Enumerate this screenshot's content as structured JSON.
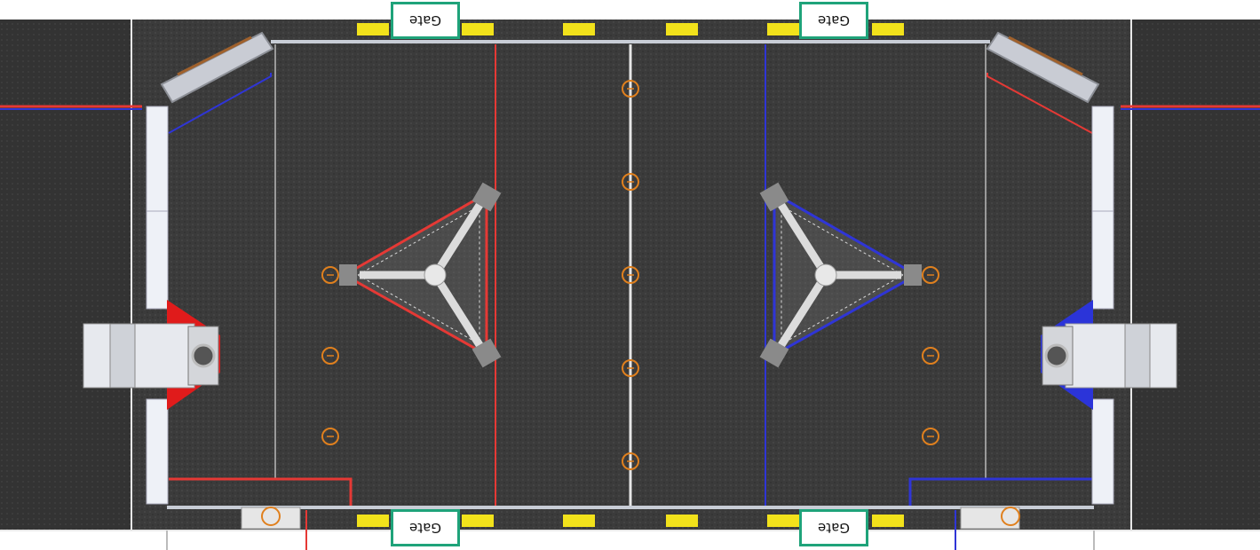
{
  "field": {
    "gates": [
      {
        "label": "Gate"
      },
      {
        "label": "Gate"
      },
      {
        "label": "Gate"
      },
      {
        "label": "Gate"
      }
    ],
    "colors": {
      "carpet": "#3b3b3b",
      "outer_carpet": "#333333",
      "red_alliance": "#e53935",
      "blue_alliance": "#2f35d6",
      "gate_border": "#1fa37a",
      "field_wall": "#c8cdd6",
      "yellow_marker": "#f2e21b",
      "ring_marker": "#e0801e"
    },
    "elements": [
      "red-hub",
      "blue-hub",
      "red-driver-station",
      "blue-driver-station",
      "ring-markers",
      "yellow-markers"
    ]
  }
}
